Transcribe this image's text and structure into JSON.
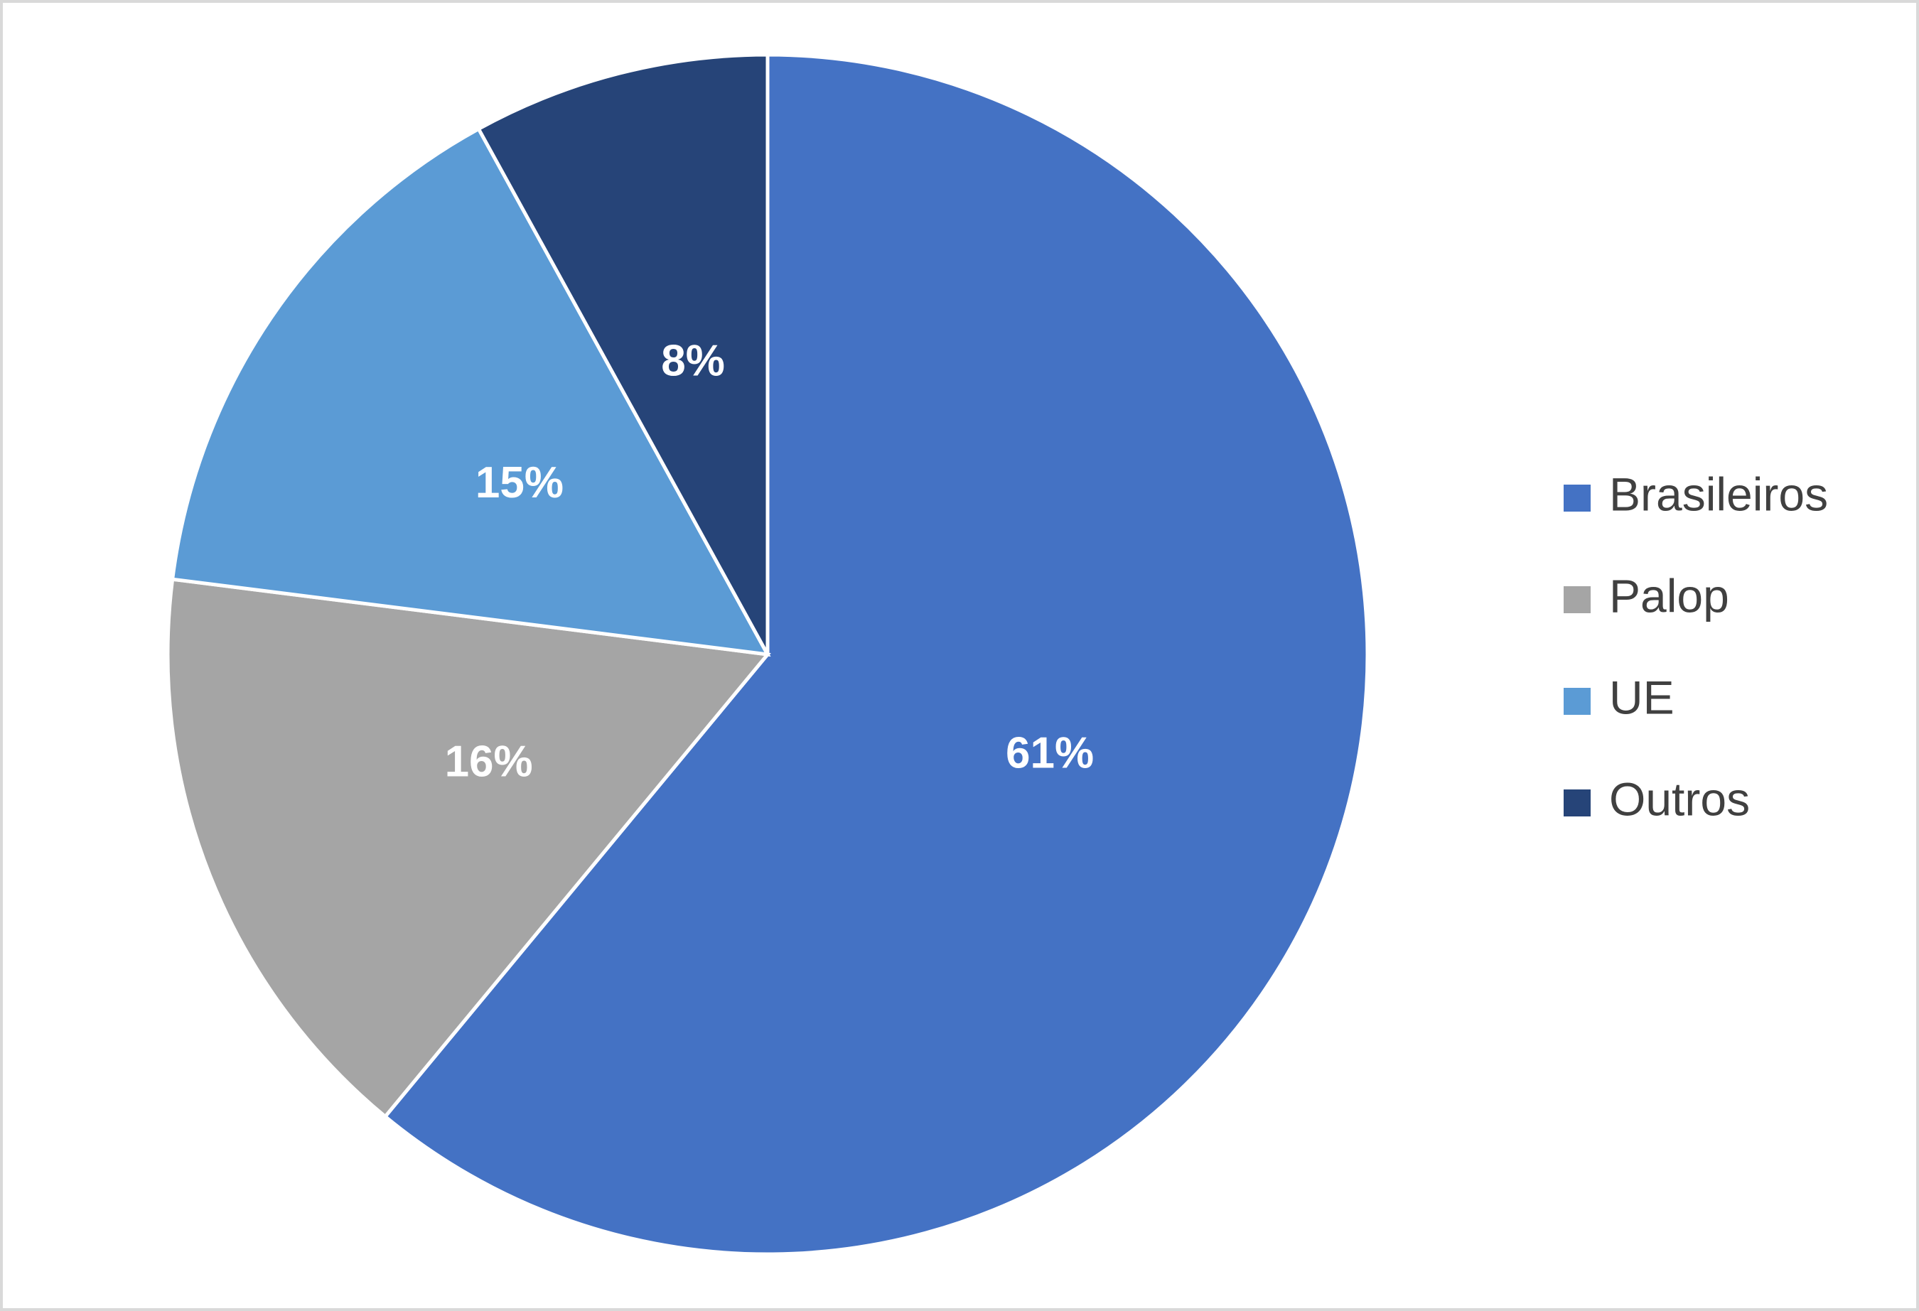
{
  "chart_data": {
    "type": "pie",
    "categories": [
      "Brasileiros",
      "Palop",
      "UE",
      "Outros"
    ],
    "values": [
      61,
      16,
      15,
      8
    ],
    "value_labels": [
      "61%",
      "16%",
      "15%",
      "8%"
    ],
    "colors": [
      "#4472c4",
      "#a5a5a5",
      "#5b9bd5",
      "#264478"
    ],
    "legend": "right"
  }
}
